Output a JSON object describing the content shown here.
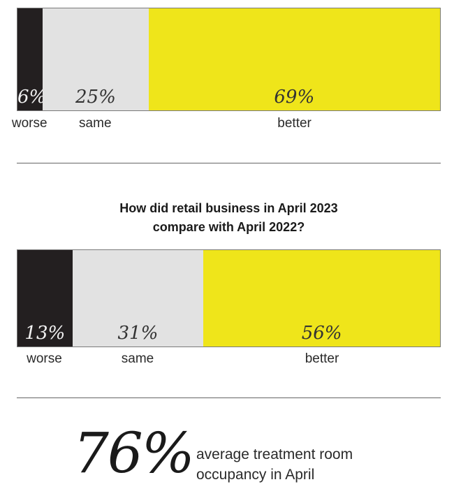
{
  "colors": {
    "worse": "#231f20",
    "same": "#e2e2e2",
    "better": "#efe51a"
  },
  "chart_data": [
    {
      "type": "bar",
      "stacked": true,
      "orientation": "horizontal",
      "title": "",
      "categories": [
        "worse",
        "same",
        "better"
      ],
      "values": [
        6,
        25,
        69
      ],
      "value_labels": [
        "6%",
        "25%",
        "69%"
      ],
      "unit": "%",
      "xlim": [
        0,
        100
      ]
    },
    {
      "type": "bar",
      "stacked": true,
      "orientation": "horizontal",
      "title_lines": [
        "How did retail business in April 2023",
        "compare with April 2022?"
      ],
      "categories": [
        "worse",
        "same",
        "better"
      ],
      "values": [
        13,
        31,
        56
      ],
      "value_labels": [
        "13%",
        "31%",
        "56%"
      ],
      "unit": "%",
      "xlim": [
        0,
        100
      ]
    }
  ],
  "stat": {
    "value": "76%",
    "caption_lines": [
      "average treatment room",
      "occupancy in April"
    ]
  }
}
